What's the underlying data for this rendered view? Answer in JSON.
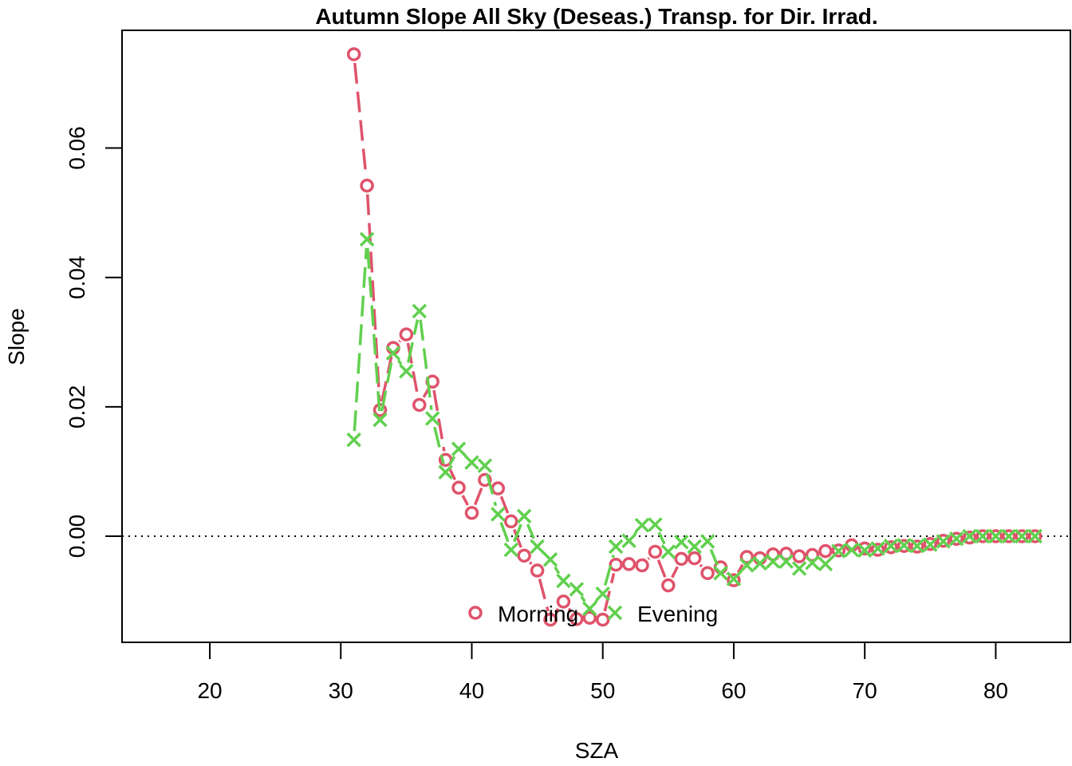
{
  "chart_data": {
    "type": "line",
    "title": "Autumn Slope All Sky (Deseas.) Transp. for Dir. Irrad.",
    "xlabel": "SZA",
    "ylabel": "Slope",
    "xlim": [
      13.3,
      85.7
    ],
    "ylim": [
      -0.0164,
      0.0782
    ],
    "x_ticks": [
      20,
      30,
      40,
      50,
      60,
      70,
      80
    ],
    "x_tick_labels": [
      "20",
      "30",
      "40",
      "50",
      "60",
      "70",
      "80"
    ],
    "y_ticks": [
      0.0,
      0.02,
      0.04,
      0.06
    ],
    "y_tick_labels": [
      "0.00",
      "0.02",
      "0.04",
      "0.06"
    ],
    "reference_line": {
      "y": 0,
      "style": "dotted"
    },
    "legend": {
      "placement": "bottom",
      "entries": [
        "Morning",
        "Evening"
      ]
    },
    "grid": false,
    "series": [
      {
        "name": "Morning",
        "color": "#DF536B",
        "marker": "circle",
        "line": "dashed",
        "x": [
          31,
          32,
          33,
          34,
          35,
          36,
          37,
          38,
          39,
          40,
          41,
          42,
          43,
          44,
          45,
          46,
          47,
          48,
          49,
          50,
          51,
          52,
          53,
          54,
          55,
          56,
          57,
          58,
          59,
          60,
          61,
          62,
          63,
          64,
          65,
          66,
          67,
          68,
          69,
          70,
          71,
          72,
          73,
          74,
          75,
          76,
          77,
          78,
          79,
          80,
          81,
          82,
          83
        ],
        "y": [
          0.0745,
          0.0542,
          0.0195,
          0.0291,
          0.0312,
          0.0203,
          0.0239,
          0.0118,
          0.0075,
          0.0036,
          0.0087,
          0.0074,
          0.0023,
          -0.003,
          -0.0053,
          -0.0129,
          -0.0101,
          -0.0128,
          -0.0126,
          -0.0129,
          -0.0044,
          -0.0043,
          -0.0045,
          -0.0024,
          -0.0076,
          -0.0035,
          -0.0034,
          -0.0057,
          -0.0048,
          -0.0068,
          -0.0032,
          -0.0034,
          -0.0028,
          -0.0027,
          -0.0031,
          -0.0029,
          -0.0023,
          -0.0022,
          -0.0014,
          -0.0019,
          -0.0021,
          -0.0017,
          -0.0015,
          -0.0016,
          -0.0012,
          -0.0007,
          -0.0004,
          -0.0002,
          0.0,
          0.0,
          0.0,
          0.0,
          0.0
        ]
      },
      {
        "name": "Evening",
        "color": "#61D04F",
        "marker": "x",
        "line": "dashed",
        "x": [
          31,
          32,
          33,
          34,
          35,
          36,
          37,
          38,
          39,
          40,
          41,
          42,
          43,
          44,
          45,
          46,
          47,
          48,
          49,
          50,
          51,
          52,
          53,
          54,
          55,
          56,
          57,
          58,
          59,
          60,
          61,
          62,
          63,
          64,
          65,
          66,
          67,
          68,
          69,
          70,
          71,
          72,
          73,
          74,
          75,
          76,
          77,
          78,
          79,
          80,
          81,
          82,
          83
        ],
        "y": [
          0.0149,
          0.0459,
          0.018,
          0.0283,
          0.0255,
          0.0348,
          0.0182,
          0.0099,
          0.0135,
          0.0114,
          0.0109,
          0.0034,
          -0.0021,
          0.0031,
          -0.0016,
          -0.0036,
          -0.0069,
          -0.0082,
          -0.0112,
          -0.0089,
          -0.0016,
          -0.0007,
          0.0017,
          0.0018,
          -0.0024,
          -0.0009,
          -0.0016,
          -0.0008,
          -0.0057,
          -0.0066,
          -0.0045,
          -0.0042,
          -0.0039,
          -0.0039,
          -0.005,
          -0.0041,
          -0.0043,
          -0.0023,
          -0.0021,
          -0.0022,
          -0.0019,
          -0.0015,
          -0.0014,
          -0.0015,
          -0.0013,
          -0.0008,
          -0.0004,
          0.0,
          0.0,
          0.0,
          0.0,
          0.0,
          0.0
        ]
      }
    ]
  }
}
